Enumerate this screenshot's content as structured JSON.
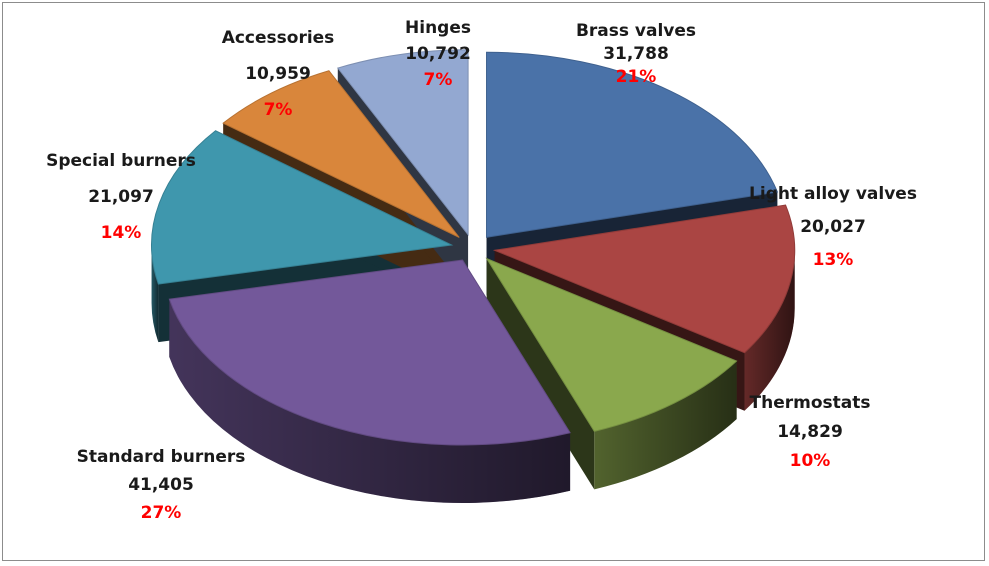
{
  "chart_data": {
    "type": "pie",
    "variant": "exploded-3d",
    "categories": [
      "Brass valves",
      "Light alloy valves",
      "Thermostats",
      "Standard burners",
      "Special burners",
      "Accessories",
      "Hinges"
    ],
    "values": [
      31788,
      20027,
      14829,
      41405,
      21097,
      10959,
      10792
    ],
    "value_labels": [
      "31,788",
      "20,027",
      "14,829",
      "41,405",
      "21,097",
      "10,959",
      "10,792"
    ],
    "percent_labels": [
      "21%",
      "13%",
      "10%",
      "27%",
      "14%",
      "7%",
      "7%"
    ],
    "colors": [
      "#4a72a8",
      "#aa4543",
      "#8aa84d",
      "#73589a",
      "#3f97ad",
      "#d9863b",
      "#93a8d1"
    ],
    "legend": "none"
  }
}
